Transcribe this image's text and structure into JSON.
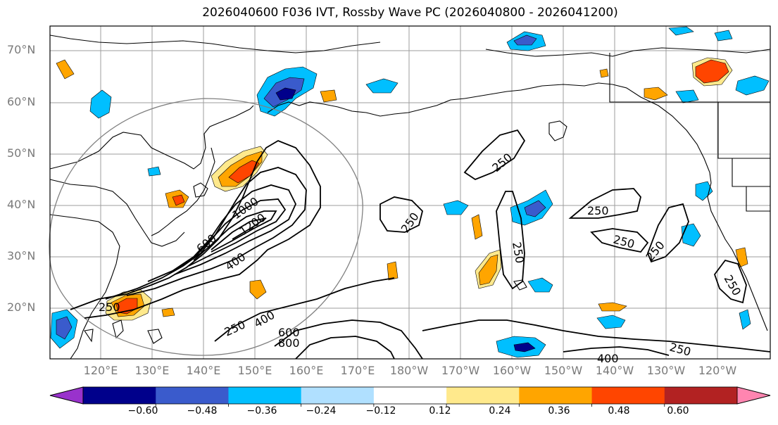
{
  "title": "2026040600 F036 IVT, Rossby Wave PC (2026040800 - 2026041200)",
  "latitude_labels": [
    "70°N",
    "60°N",
    "50°N",
    "40°N",
    "30°N",
    "20°N"
  ],
  "longitude_labels": [
    "120°E",
    "130°E",
    "140°E",
    "150°E",
    "160°E",
    "170°E",
    "180°W",
    "170°W",
    "160°W",
    "150°W",
    "140°W",
    "130°W",
    "120°W"
  ],
  "contour_labels": [
    "250",
    "400",
    "600",
    "800",
    "1000",
    "1200"
  ],
  "colorbar": {
    "tick_labels": [
      "−0.60",
      "−0.48",
      "−0.36",
      "−0.24",
      "−0.12",
      "0.12",
      "0.24",
      "0.36",
      "0.48",
      "0.60"
    ],
    "colors": [
      "#9932cc",
      "#00008b",
      "#3a5bcc",
      "#00bfff",
      "#b0e0ff",
      "#ffffff",
      "#ffe98c",
      "#ffa500",
      "#ff4500",
      "#b22222",
      "#ff85b0"
    ]
  },
  "colors": {
    "grid": "#9e9e9e",
    "contour": "#000000",
    "coast": "#000000",
    "circle": "#808080"
  }
}
